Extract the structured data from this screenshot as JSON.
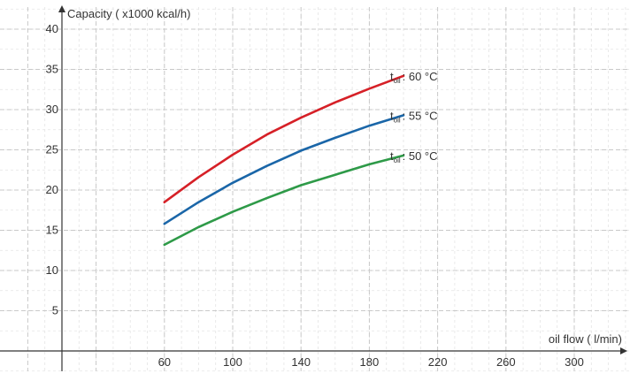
{
  "chart_data": {
    "type": "line",
    "ylabel": "Capacity ( x1000 kcal/h)",
    "xlabel": "oil flow ( l/min)",
    "x_ticks": [
      60,
      100,
      140,
      180,
      220,
      260,
      300
    ],
    "y_ticks": [
      5,
      10,
      15,
      20,
      25,
      30,
      35,
      40
    ],
    "xlim": [
      -5,
      330
    ],
    "ylim": [
      -2,
      42
    ],
    "grid": true,
    "series": [
      {
        "name_main": "t",
        "name_sub": "oil",
        "name_rest": ": 60 °C",
        "color": "#d62027",
        "x": [
          60,
          80,
          100,
          120,
          140,
          160,
          180,
          200
        ],
        "y": [
          18.5,
          21.6,
          24.4,
          26.9,
          29.0,
          30.9,
          32.6,
          34.2
        ]
      },
      {
        "name_main": "t",
        "name_sub": "oil",
        "name_rest": ": 55 °C",
        "color": "#1a66a8",
        "x": [
          60,
          80,
          100,
          120,
          140,
          160,
          180,
          200
        ],
        "y": [
          15.8,
          18.5,
          20.9,
          23.0,
          24.9,
          26.5,
          28.0,
          29.3
        ]
      },
      {
        "name_main": "t",
        "name_sub": "oil",
        "name_rest": ": 50 °C",
        "color": "#2e9a48",
        "x": [
          60,
          80,
          100,
          120,
          140,
          160,
          180,
          200
        ],
        "y": [
          13.2,
          15.4,
          17.3,
          19.0,
          20.6,
          21.9,
          23.2,
          24.3
        ]
      }
    ]
  }
}
